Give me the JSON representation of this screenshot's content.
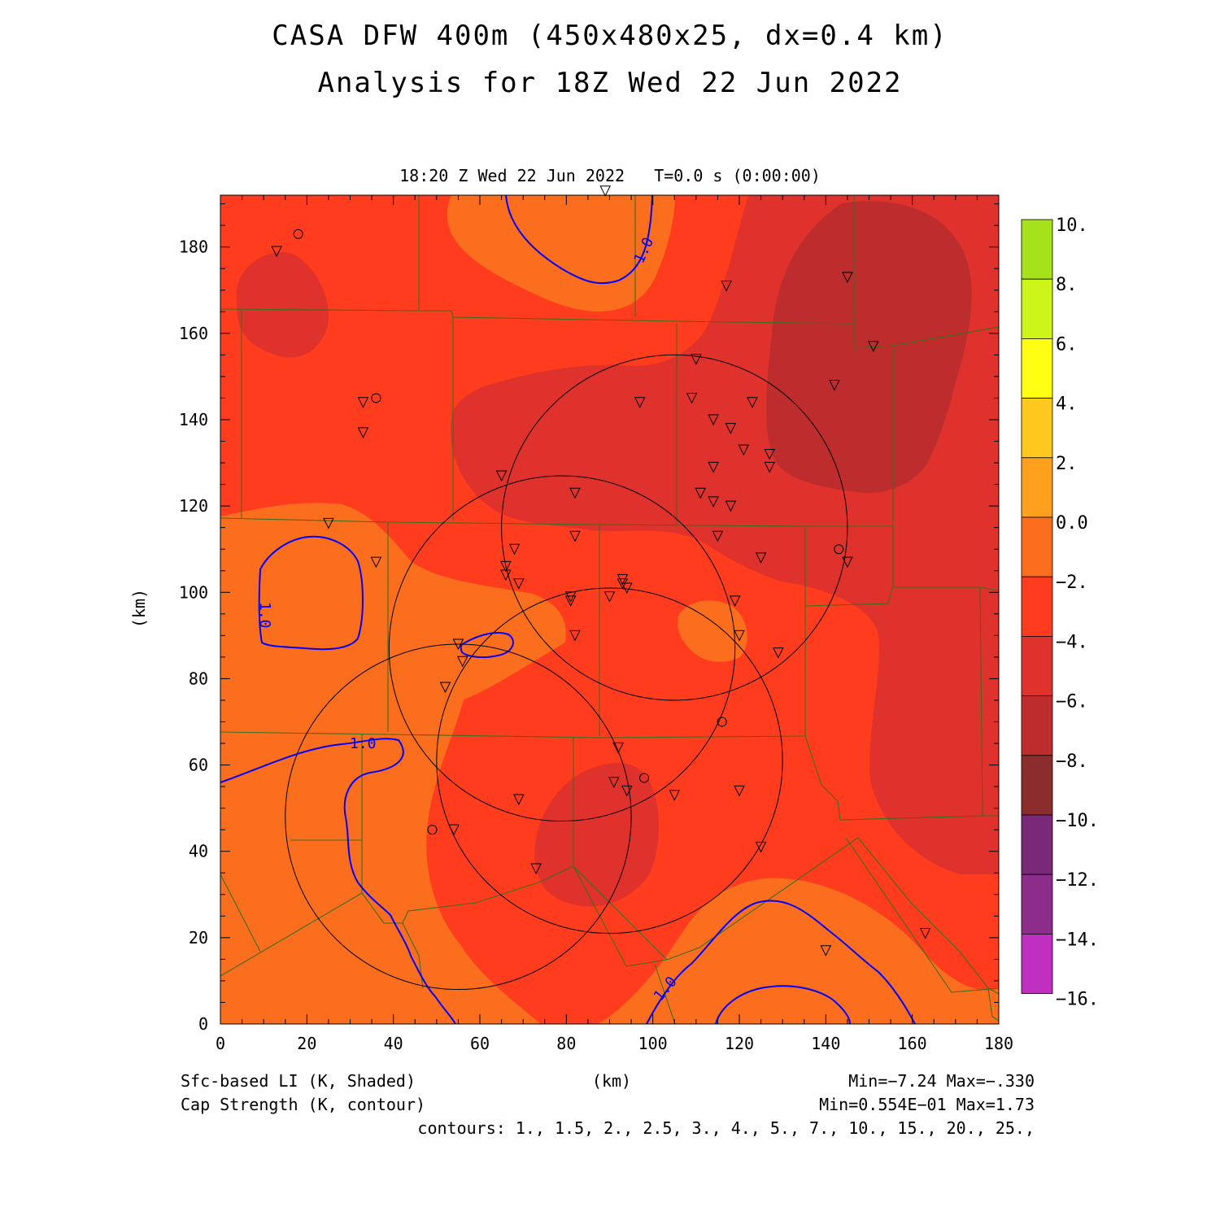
{
  "title_line1": "CASA DFW 400m (450x480x25, dx=0.4 km)",
  "title_line2": "Analysis for 18Z Wed 22 Jun 2022",
  "valid_time": "18:20 Z Wed 22 Jun 2022",
  "model_time": "T=0.0 s (0:00:00)",
  "axes": {
    "xlabel": "(km)",
    "ylabel": "(km)",
    "xlim": [
      0,
      180
    ],
    "ylim": [
      0,
      192
    ],
    "xticks": [
      "0",
      "20",
      "40",
      "60",
      "80",
      "100",
      "120",
      "140",
      "160",
      "180"
    ],
    "yticks": [
      "0",
      "20",
      "40",
      "60",
      "80",
      "100",
      "120",
      "140",
      "160",
      "180"
    ]
  },
  "colorbar": {
    "labels": [
      "10.",
      "8.",
      "6.",
      "4.",
      "2.",
      "0.0",
      "−2.",
      "−4.",
      "−6.",
      "−8.",
      "−10.",
      "−12.",
      "−14.",
      "−16."
    ],
    "colors": [
      "#a6e21c",
      "#ccf51a",
      "#ffff14",
      "#ffc81e",
      "#ffa01e",
      "#fa6e1e",
      "#ff3c1e",
      "#e0322d",
      "#be2d2d",
      "#8c2d2d",
      "#7a2878",
      "#8c2d8c",
      "#c030c0",
      "#dc3cdc"
    ]
  },
  "fields": {
    "shaded_label": "Sfc-based LI (K, Shaded)",
    "contour_label": "Cap Strength (K, contour)",
    "shaded_minmax": "Min=−7.24 Max=−.330",
    "contour_minmax": "Min=0.554E−01 Max=1.73",
    "contours": "contours: 1., 1.5, 2., 2.5, 3., 4., 5., 7., 10., 15., 20., 25.,",
    "contour_labels": [
      "1.0",
      "1.0",
      "1.0",
      "1.0"
    ]
  },
  "colors": {
    "li_0_to_m2": "#fa6e1e",
    "li_m2_to_m4": "#ff3c1e",
    "li_m4_to_m6": "#e0322d",
    "li_m6_to_m8": "#be2d2d",
    "county_lines": "#3c6e1e",
    "cap_contour": "#0000ff",
    "radar_rings": "#000000"
  },
  "radar_rings": [
    {
      "x": 105,
      "y": 115,
      "r": 40
    },
    {
      "x": 79,
      "y": 87,
      "r": 40
    },
    {
      "x": 90,
      "y": 61,
      "r": 40
    },
    {
      "x": 55,
      "y": 48,
      "r": 40
    }
  ],
  "stations_triangle": [
    [
      13,
      179
    ],
    [
      33,
      144
    ],
    [
      33,
      137
    ],
    [
      25,
      116
    ],
    [
      36,
      107
    ],
    [
      89,
      193
    ],
    [
      117,
      171
    ],
    [
      145,
      173
    ],
    [
      151,
      157
    ],
    [
      142,
      148
    ],
    [
      110,
      154
    ],
    [
      97,
      144
    ],
    [
      109,
      145
    ],
    [
      114,
      140
    ],
    [
      118,
      138
    ],
    [
      123,
      144
    ],
    [
      121,
      133
    ],
    [
      127,
      132
    ],
    [
      127,
      129
    ],
    [
      114,
      129
    ],
    [
      111,
      123
    ],
    [
      114,
      121
    ],
    [
      118,
      120
    ],
    [
      65,
      127
    ],
    [
      82,
      123
    ],
    [
      82,
      113
    ],
    [
      68,
      110
    ],
    [
      66,
      106
    ],
    [
      66,
      104
    ],
    [
      69,
      102
    ],
    [
      81,
      99
    ],
    [
      81,
      98
    ],
    [
      90,
      99
    ],
    [
      93,
      103
    ],
    [
      93,
      102
    ],
    [
      94,
      101
    ],
    [
      115,
      113
    ],
    [
      125,
      108
    ],
    [
      145,
      107
    ],
    [
      119,
      98
    ],
    [
      82,
      90
    ],
    [
      120,
      90
    ],
    [
      129,
      86
    ],
    [
      55,
      88
    ],
    [
      56,
      84
    ],
    [
      52,
      78
    ],
    [
      92,
      64
    ],
    [
      91,
      56
    ],
    [
      94,
      54
    ],
    [
      105,
      53
    ],
    [
      120,
      54
    ],
    [
      69,
      52
    ],
    [
      54,
      45
    ],
    [
      125,
      41
    ],
    [
      73,
      36
    ],
    [
      140,
      17
    ],
    [
      163,
      21
    ]
  ],
  "stations_circle": [
    [
      18,
      183
    ],
    [
      36,
      145
    ],
    [
      143,
      110
    ],
    [
      116,
      70
    ],
    [
      98,
      57
    ],
    [
      49,
      45
    ]
  ]
}
